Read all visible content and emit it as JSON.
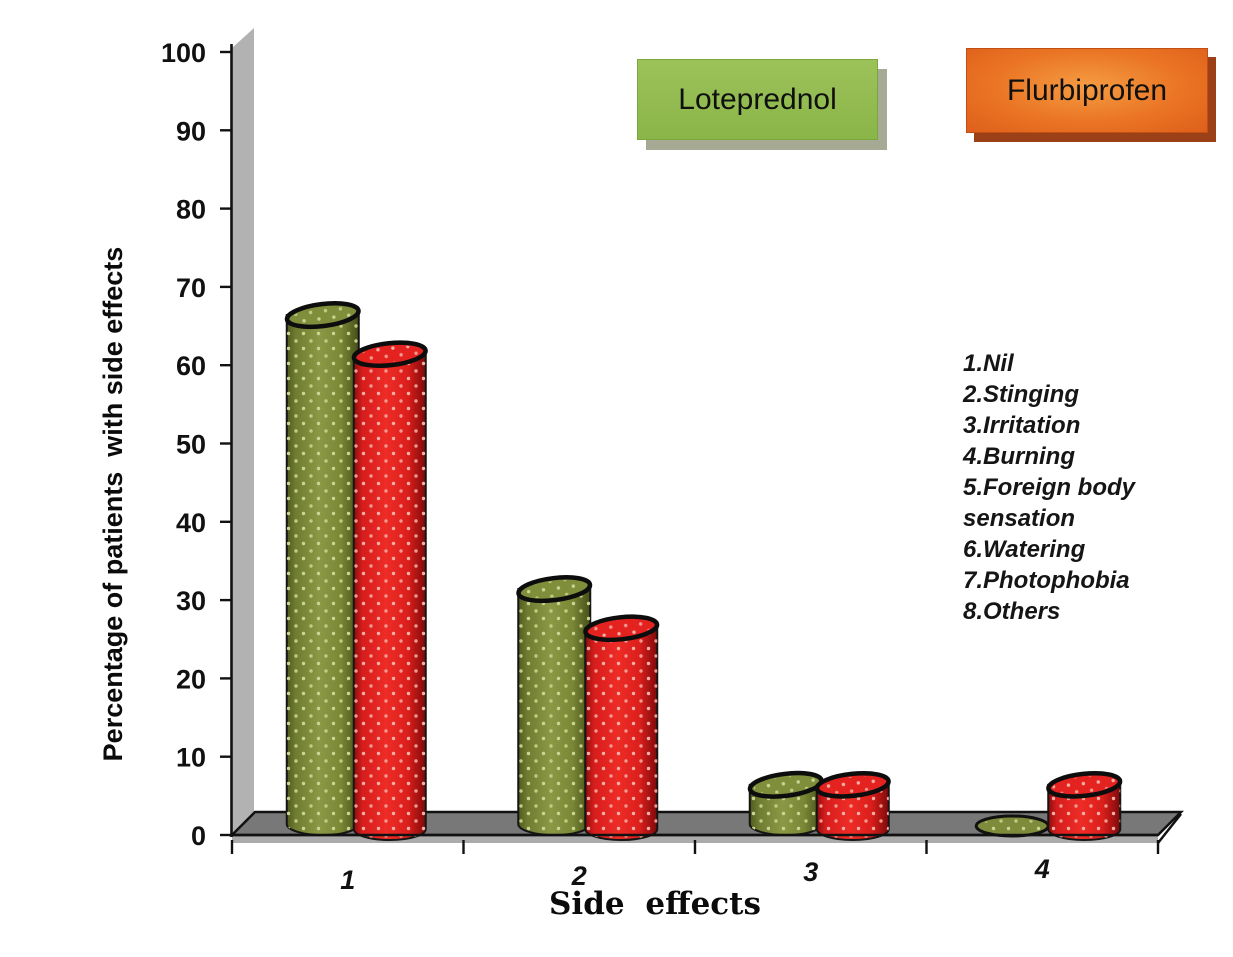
{
  "chart_data": {
    "type": "bar",
    "variant": "3d-cylinder",
    "title": "",
    "xlabel": "Side effects",
    "ylabel": "Percentage of patients  with side effects",
    "categories": [
      "1",
      "2",
      "3",
      "4"
    ],
    "series": [
      {
        "name": "Loteprednol",
        "color": "#7d8b3a",
        "values": [
          65,
          30,
          5,
          0
        ]
      },
      {
        "name": "Flurbiprofen",
        "color": "#e2211c",
        "values": [
          60,
          25,
          5,
          5
        ]
      }
    ],
    "ylim": [
      0,
      100
    ],
    "yticks": [
      0,
      10,
      20,
      30,
      40,
      50,
      60,
      70,
      80,
      90,
      100
    ],
    "grid": false,
    "legend_position": "top",
    "annotations": [
      "1.Nil",
      "2.Stinging",
      "3.Irritation",
      "4.Burning",
      "5.Foreign body sensation",
      "6.Watering",
      "7.Photophobia",
      "8.Others"
    ]
  },
  "colors": {
    "loteprednol_bar": "#7d8b3a",
    "flurbiprofen_bar": "#e2211c",
    "legend_loteprednol_bg": "#8dba4d",
    "legend_flurbiprofen_bg": "#ea7524",
    "wall_gray": "#b2b2b2",
    "floor_gray": "#787878"
  }
}
